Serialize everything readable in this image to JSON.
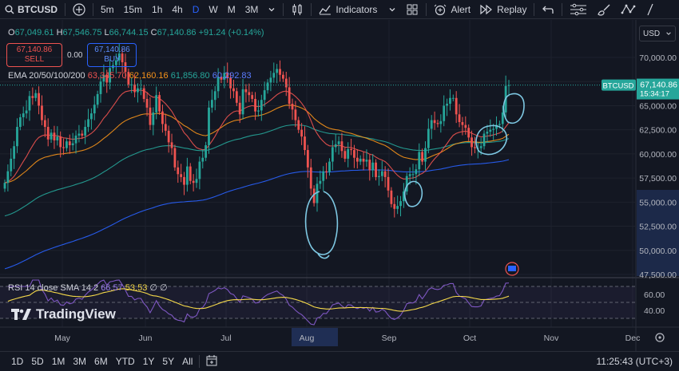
{
  "toolbar": {
    "symbol": "BTCUSD",
    "timeframes": [
      "5m",
      "15m",
      "1h",
      "4h",
      "D",
      "W",
      "M",
      "3M"
    ],
    "active_timeframe": "D",
    "indicators_label": "Indicators",
    "alert_label": "Alert",
    "replay_label": "Replay"
  },
  "ohlc": {
    "o_label": "O",
    "o": "67,049.61",
    "h_label": "H",
    "h": "67,546.75",
    "l_label": "L",
    "l": "66,744.15",
    "c_label": "C",
    "c": "67,140.86",
    "change": "+91.24 (+0.14%)"
  },
  "sell": {
    "price": "67,140.86",
    "label": "SELL"
  },
  "spread": "0.00",
  "buy": {
    "price": "67,140.86",
    "label": "BUY"
  },
  "ema_legend": {
    "name": "EMA 20/50/100/200",
    "v20": "63,345.70",
    "v50": "62,160.16",
    "v100": "61,856.80",
    "v200": "60,292.83"
  },
  "rsi_legend": {
    "name": "RSI 14 close SMA 14 2",
    "rsi": "66.57",
    "sma": "53.53",
    "extra": "∅ ∅"
  },
  "price_tag": {
    "symbol": "BTCUSD",
    "price": "67,140.86",
    "countdown": "15:34:17"
  },
  "currency": "USD",
  "logo_text": "TradingView",
  "bottom_bar": {
    "ranges": [
      "1D",
      "5D",
      "1M",
      "3M",
      "6M",
      "YTD",
      "1Y",
      "5Y",
      "All"
    ],
    "clock": "11:25:43 (UTC+3)"
  },
  "colors": {
    "up": "#26a69a",
    "down": "#ef5350",
    "ema20": "#ef5350",
    "ema50": "#f7931a",
    "ema100": "#26a69a",
    "ema200": "#2962ff",
    "rsi": "#7e57c2",
    "rsi_sma": "#f5d94a",
    "annot": "#7ec8e3"
  },
  "chart_data": {
    "type": "candlestick",
    "x_labels": [
      "May",
      "Jun",
      "Jul",
      "Aug",
      "Sep",
      "Oct",
      "Nov",
      "Dec"
    ],
    "y_ticks": [
      70000,
      67500,
      65000,
      62500,
      60000,
      57500,
      55000,
      52500,
      50000,
      47500
    ],
    "y_tick_labels": [
      "70,000.00",
      "67,500.00",
      "65,000.00",
      "62,500.00",
      "60,000.00",
      "57,500.00",
      "55,000.00",
      "52,500.00",
      "50,000.00",
      "47,500.00"
    ],
    "ylim": [
      47500,
      72000
    ],
    "closes": [
      57000,
      58200,
      59500,
      60800,
      62800,
      63800,
      64200,
      64500,
      66000,
      65800,
      66300,
      65000,
      63500,
      62800,
      61500,
      62200,
      61400,
      61800,
      60700,
      60600,
      61300,
      60900,
      61100,
      61900,
      62100,
      61900,
      62800,
      63600,
      64200,
      65100,
      66200,
      67500,
      68200,
      67400,
      68900,
      69200,
      69700,
      70400,
      69500,
      68500,
      67200,
      67200,
      66400,
      66800,
      66800,
      65700,
      64800,
      63000,
      64300,
      66100,
      64400,
      63100,
      62400,
      61200,
      60600,
      58600,
      57900,
      57600,
      56800,
      58700,
      57200,
      57000,
      57400,
      59200,
      59600,
      60900,
      64800,
      65600,
      66500,
      68000,
      67700,
      68400,
      67900,
      66800,
      66500,
      65300,
      64100,
      66700,
      66400,
      66100,
      65700,
      64400,
      64500,
      65600,
      66600,
      67400,
      67900,
      68400,
      68800,
      68200,
      67800,
      66900,
      65200,
      64600,
      63500,
      62500,
      61800,
      60400,
      58600,
      56400,
      54900,
      56900,
      57200,
      58200,
      58100,
      59200,
      60700,
      61000,
      61300,
      60300,
      59500,
      60500,
      60400,
      59600,
      59200,
      59500,
      59200,
      59400,
      58300,
      59100,
      57600,
      57700,
      58200,
      57600,
      56200,
      54800,
      54300,
      54600,
      55100,
      56100,
      57700,
      57900,
      57900,
      58400,
      60200,
      59200,
      60600,
      62600,
      63500,
      63200,
      63100,
      63400,
      65000,
      65200,
      65800,
      65800,
      64100,
      63300,
      63000,
      62700,
      61700,
      60700,
      60600,
      60600,
      60800,
      62100,
      62300,
      62500,
      62600,
      63000,
      63100,
      64300,
      67049,
      67140
    ],
    "first_label_index": 0,
    "rsi": {
      "y_ticks": [
        60,
        40
      ],
      "ylim": [
        20,
        80
      ],
      "overbought": 70,
      "oversold": 30
    },
    "annotations": [
      "circle around Aug low",
      "circle near Sep low",
      "circle near Oct low",
      "circle near current price"
    ]
  }
}
